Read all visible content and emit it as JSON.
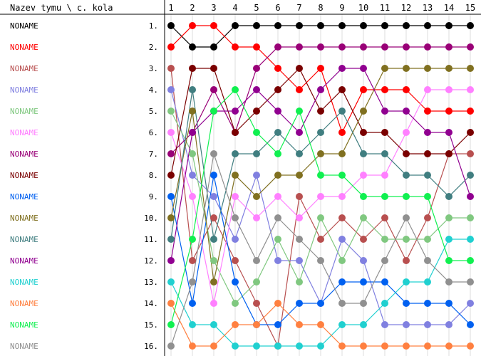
{
  "chart_data": {
    "type": "line",
    "corner_label": "Nazev tymu \\ c. kola",
    "rounds": [
      "1",
      "2",
      "3",
      "4",
      "5",
      "6",
      "7",
      "8",
      "9",
      "10",
      "11",
      "12",
      "13",
      "14",
      "15"
    ],
    "rank_labels": [
      "1.",
      "2.",
      "3.",
      "4.",
      "5.",
      "6.",
      "7.",
      "8.",
      "9.",
      "10.",
      "11.",
      "12.",
      "13.",
      "14.",
      "15.",
      "16."
    ],
    "ylim": [
      1,
      16
    ],
    "y_inverted": true,
    "grid": true,
    "series": [
      {
        "name": "NONAME",
        "color": "#000000",
        "values": [
          1,
          2,
          2,
          1,
          1,
          1,
          1,
          1,
          1,
          1,
          1,
          1,
          1,
          1,
          1
        ]
      },
      {
        "name": "NONAME",
        "color": "#ff0000",
        "values": [
          2,
          1,
          1,
          2,
          2,
          3,
          4,
          3,
          6,
          4,
          4,
          4,
          5,
          5,
          5
        ]
      },
      {
        "name": "NONAME",
        "color": "#b84f4f",
        "values": [
          3,
          12,
          10,
          12,
          14,
          16,
          9,
          11,
          10,
          11,
          10,
          12,
          10,
          7,
          7
        ]
      },
      {
        "name": "NONAME",
        "color": "#8080e0",
        "values": [
          4,
          8,
          9,
          11,
          8,
          12,
          12,
          14,
          11,
          12,
          15,
          15,
          15,
          15,
          14
        ]
      },
      {
        "name": "NONAME",
        "color": "#80c880",
        "values": [
          5,
          7,
          12,
          14,
          13,
          11,
          13,
          10,
          12,
          10,
          11,
          11,
          11,
          10,
          10
        ]
      },
      {
        "name": "NONAME",
        "color": "#ff80ff",
        "values": [
          6,
          9,
          14,
          9,
          10,
          9,
          10,
          9,
          9,
          8,
          8,
          6,
          4,
          4,
          4
        ]
      },
      {
        "name": "NONAME",
        "color": "#990077",
        "values": [
          7,
          6,
          4,
          6,
          3,
          2,
          2,
          2,
          2,
          2,
          2,
          2,
          2,
          2,
          2
        ]
      },
      {
        "name": "NONAME",
        "color": "#7a0000",
        "values": [
          8,
          3,
          3,
          6,
          5,
          4,
          3,
          5,
          4,
          6,
          6,
          7,
          7,
          7,
          6
        ]
      },
      {
        "name": "NONAME",
        "color": "#0060f0",
        "values": [
          9,
          14,
          8,
          13,
          15,
          15,
          14,
          14,
          13,
          13,
          13,
          14,
          14,
          14,
          15
        ]
      },
      {
        "name": "NONAME",
        "color": "#807020",
        "values": [
          10,
          5,
          13,
          8,
          9,
          8,
          8,
          7,
          7,
          5,
          3,
          3,
          3,
          3,
          3
        ]
      },
      {
        "name": "NONAME",
        "color": "#407e80",
        "values": [
          11,
          4,
          11,
          7,
          7,
          6,
          7,
          6,
          5,
          7,
          7,
          8,
          8,
          9,
          8
        ]
      },
      {
        "name": "NONAME",
        "color": "#900090",
        "values": [
          12,
          6,
          5,
          5,
          4,
          5,
          6,
          4,
          3,
          3,
          5,
          5,
          6,
          6,
          9
        ]
      },
      {
        "name": "NONAME",
        "color": "#20d0d0",
        "values": [
          13,
          15,
          15,
          16,
          16,
          16,
          16,
          16,
          15,
          15,
          14,
          13,
          13,
          11,
          11
        ]
      },
      {
        "name": "NONAME",
        "color": "#ff8040",
        "values": [
          14,
          16,
          16,
          15,
          15,
          14,
          15,
          15,
          16,
          16,
          16,
          16,
          16,
          16,
          16
        ]
      },
      {
        "name": "NONAME",
        "color": "#10f050",
        "values": [
          15,
          11,
          5,
          4,
          6,
          7,
          5,
          8,
          8,
          9,
          9,
          9,
          9,
          12,
          12
        ]
      },
      {
        "name": "NONAME",
        "color": "#909090",
        "values": [
          16,
          13,
          7,
          10,
          12,
          10,
          11,
          12,
          14,
          14,
          12,
          10,
          12,
          13,
          13
        ]
      }
    ]
  }
}
